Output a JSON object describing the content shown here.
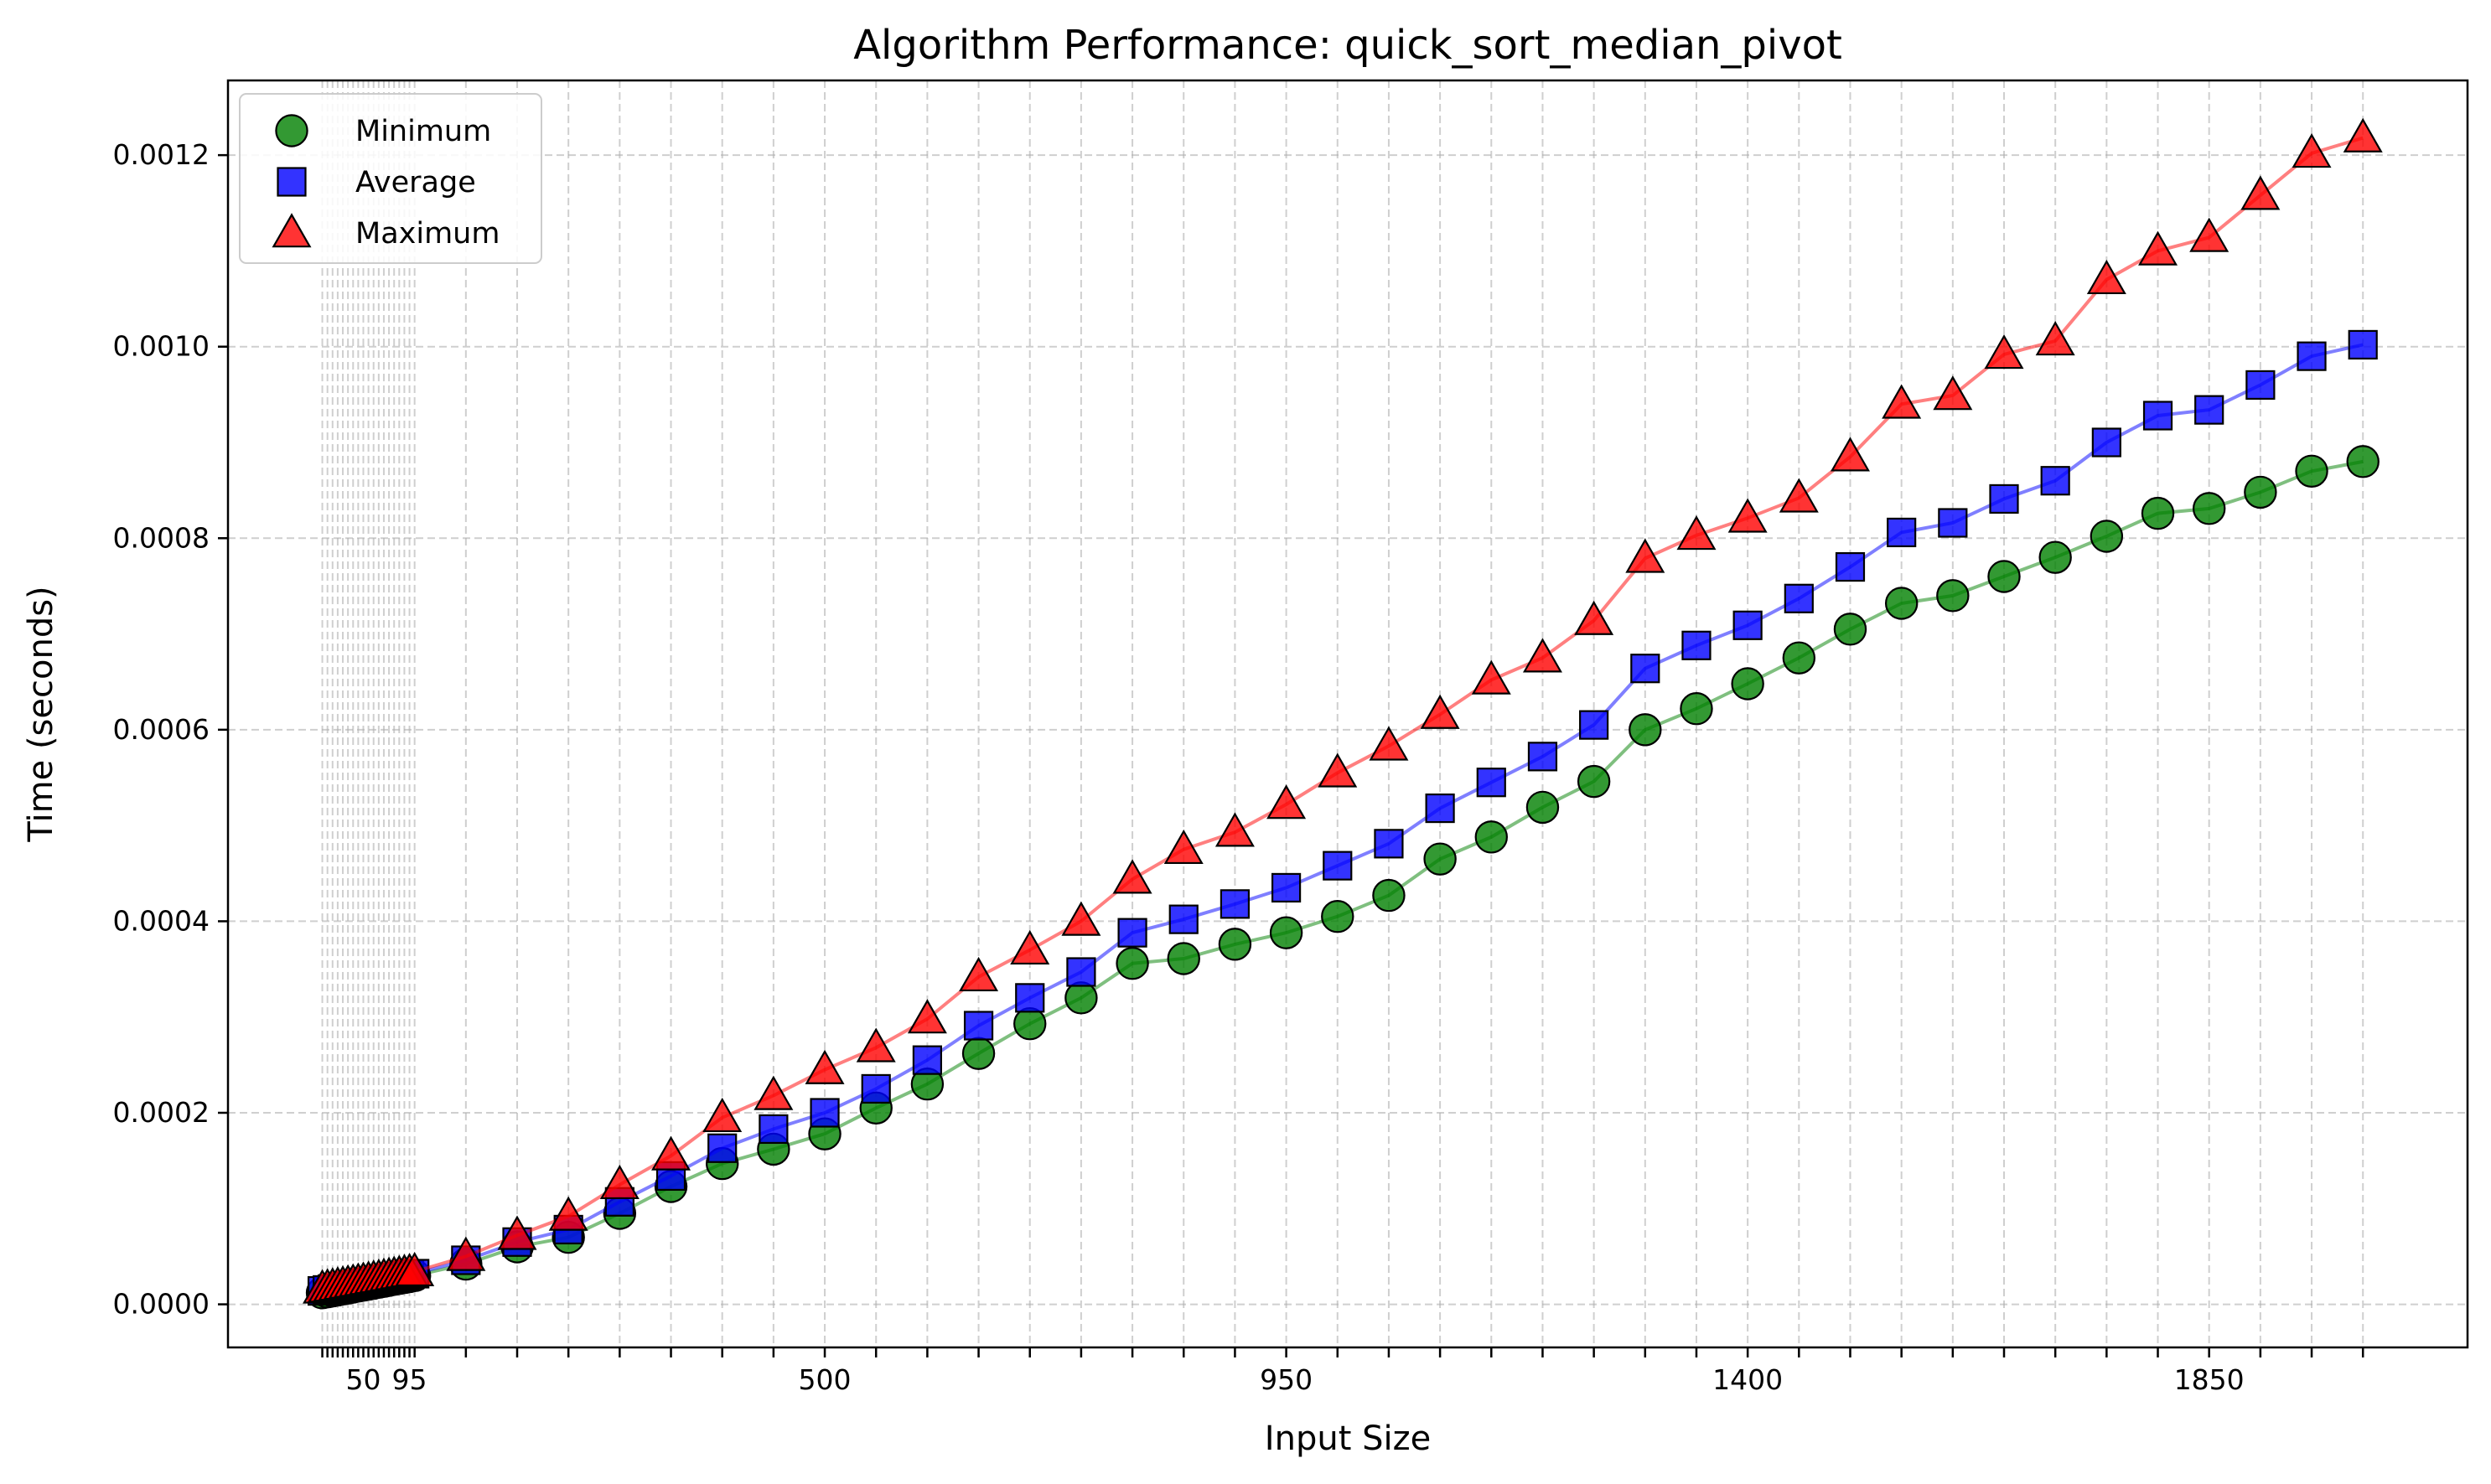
{
  "chart_data": {
    "type": "line",
    "title": "Algorithm Performance: quick_sort_median_pivot",
    "xlabel": "Input Size",
    "ylabel": "Time (seconds)",
    "x": [
      10,
      15,
      20,
      25,
      30,
      35,
      40,
      45,
      50,
      55,
      60,
      65,
      70,
      75,
      80,
      85,
      90,
      95,
      100,
      150,
      200,
      250,
      300,
      350,
      400,
      450,
      500,
      550,
      600,
      650,
      700,
      750,
      800,
      850,
      900,
      950,
      1000,
      1050,
      1100,
      1150,
      1200,
      1250,
      1300,
      1350,
      1400,
      1450,
      1500,
      1550,
      1600,
      1650,
      1700,
      1750,
      1800,
      1850,
      1900,
      1950,
      2000
    ],
    "x_tick_labels": [
      "50",
      "95",
      "500",
      "950",
      "1400",
      "1850"
    ],
    "x_tick_values": [
      50,
      95,
      500,
      950,
      1400,
      1850
    ],
    "xlim": [
      -82,
      2102
    ],
    "ylim": [
      -4.5e-05,
      0.001278
    ],
    "y_ticks": [
      "0.0000",
      "0.0002",
      "0.0004",
      "0.0006",
      "0.0008",
      "0.0010",
      "0.0012"
    ],
    "y_tick_values": [
      0,
      0.0002,
      0.0004,
      0.0006,
      0.0008,
      0.001,
      0.0012
    ],
    "grid": true,
    "legend_position": "top-left",
    "series": [
      {
        "name": "Minimum",
        "color": "#008000",
        "marker": "circle",
        "values": [
          1.2e-05,
          1.3e-05,
          1.4e-05,
          1.5e-05,
          1.6e-05,
          1.7e-05,
          1.8e-05,
          1.9e-05,
          2e-05,
          2.1e-05,
          2.2e-05,
          2.3e-05,
          2.4e-05,
          2.5e-05,
          2.6e-05,
          2.7e-05,
          2.8e-05,
          2.9e-05,
          3e-05,
          4.2e-05,
          6e-05,
          7e-05,
          9.5e-05,
          0.000123,
          0.000147,
          0.000162,
          0.000178,
          0.000205,
          0.00023,
          0.000262,
          0.000293,
          0.00032,
          0.000356,
          0.000361,
          0.000376,
          0.000388,
          0.000405,
          0.000427,
          0.000465,
          0.000488,
          0.000519,
          0.000546,
          0.0006,
          0.000622,
          0.000648,
          0.000675,
          0.000705,
          0.000732,
          0.00074,
          0.00076,
          0.00078,
          0.000802,
          0.000826,
          0.000831,
          0.000848,
          0.00087,
          0.00088
        ]
      },
      {
        "name": "Average",
        "color": "#0000ff",
        "marker": "square",
        "values": [
          1.4e-05,
          1.5e-05,
          1.6e-05,
          1.7e-05,
          1.8e-05,
          1.9e-05,
          2e-05,
          2.1e-05,
          2.2e-05,
          2.3e-05,
          2.4e-05,
          2.5e-05,
          2.6e-05,
          2.7e-05,
          2.8e-05,
          2.9e-05,
          3e-05,
          3.1e-05,
          3.2e-05,
          4.6e-05,
          6.5e-05,
          7.8e-05,
          0.000107,
          0.000134,
          0.000163,
          0.000183,
          0.0002,
          0.000225,
          0.000255,
          0.000291,
          0.00032,
          0.000347,
          0.000388,
          0.000402,
          0.000418,
          0.000435,
          0.000458,
          0.000481,
          0.000518,
          0.000545,
          0.000572,
          0.000605,
          0.000664,
          0.000688,
          0.000709,
          0.000737,
          0.00077,
          0.000806,
          0.000816,
          0.000841,
          0.00086,
          0.0009,
          0.000928,
          0.000934,
          0.00096,
          0.00099,
          0.001002
        ]
      },
      {
        "name": "Maximum",
        "color": "#ff0000",
        "marker": "triangle",
        "values": [
          1.6e-05,
          1.7e-05,
          1.8e-05,
          1.9e-05,
          2e-05,
          2.1e-05,
          2.2e-05,
          2.3e-05,
          2.4e-05,
          2.5e-05,
          2.6e-05,
          2.7e-05,
          2.8e-05,
          2.9e-05,
          3e-05,
          3.1e-05,
          3.2e-05,
          3.3e-05,
          3.4e-05,
          5e-05,
          7.2e-05,
          9.2e-05,
          0.000125,
          0.000155,
          0.000195,
          0.000218,
          0.000245,
          0.000268,
          0.000298,
          0.000342,
          0.00037,
          0.0004,
          0.000444,
          0.000475,
          0.000493,
          0.000522,
          0.000555,
          0.000583,
          0.000616,
          0.000652,
          0.000675,
          0.000714,
          0.000779,
          0.000803,
          0.000821,
          0.000842,
          0.000885,
          0.00094,
          0.000949,
          0.000992,
          0.001006,
          0.00107,
          0.0011,
          0.001114,
          0.001158,
          0.001202,
          0.001218
        ]
      }
    ]
  }
}
